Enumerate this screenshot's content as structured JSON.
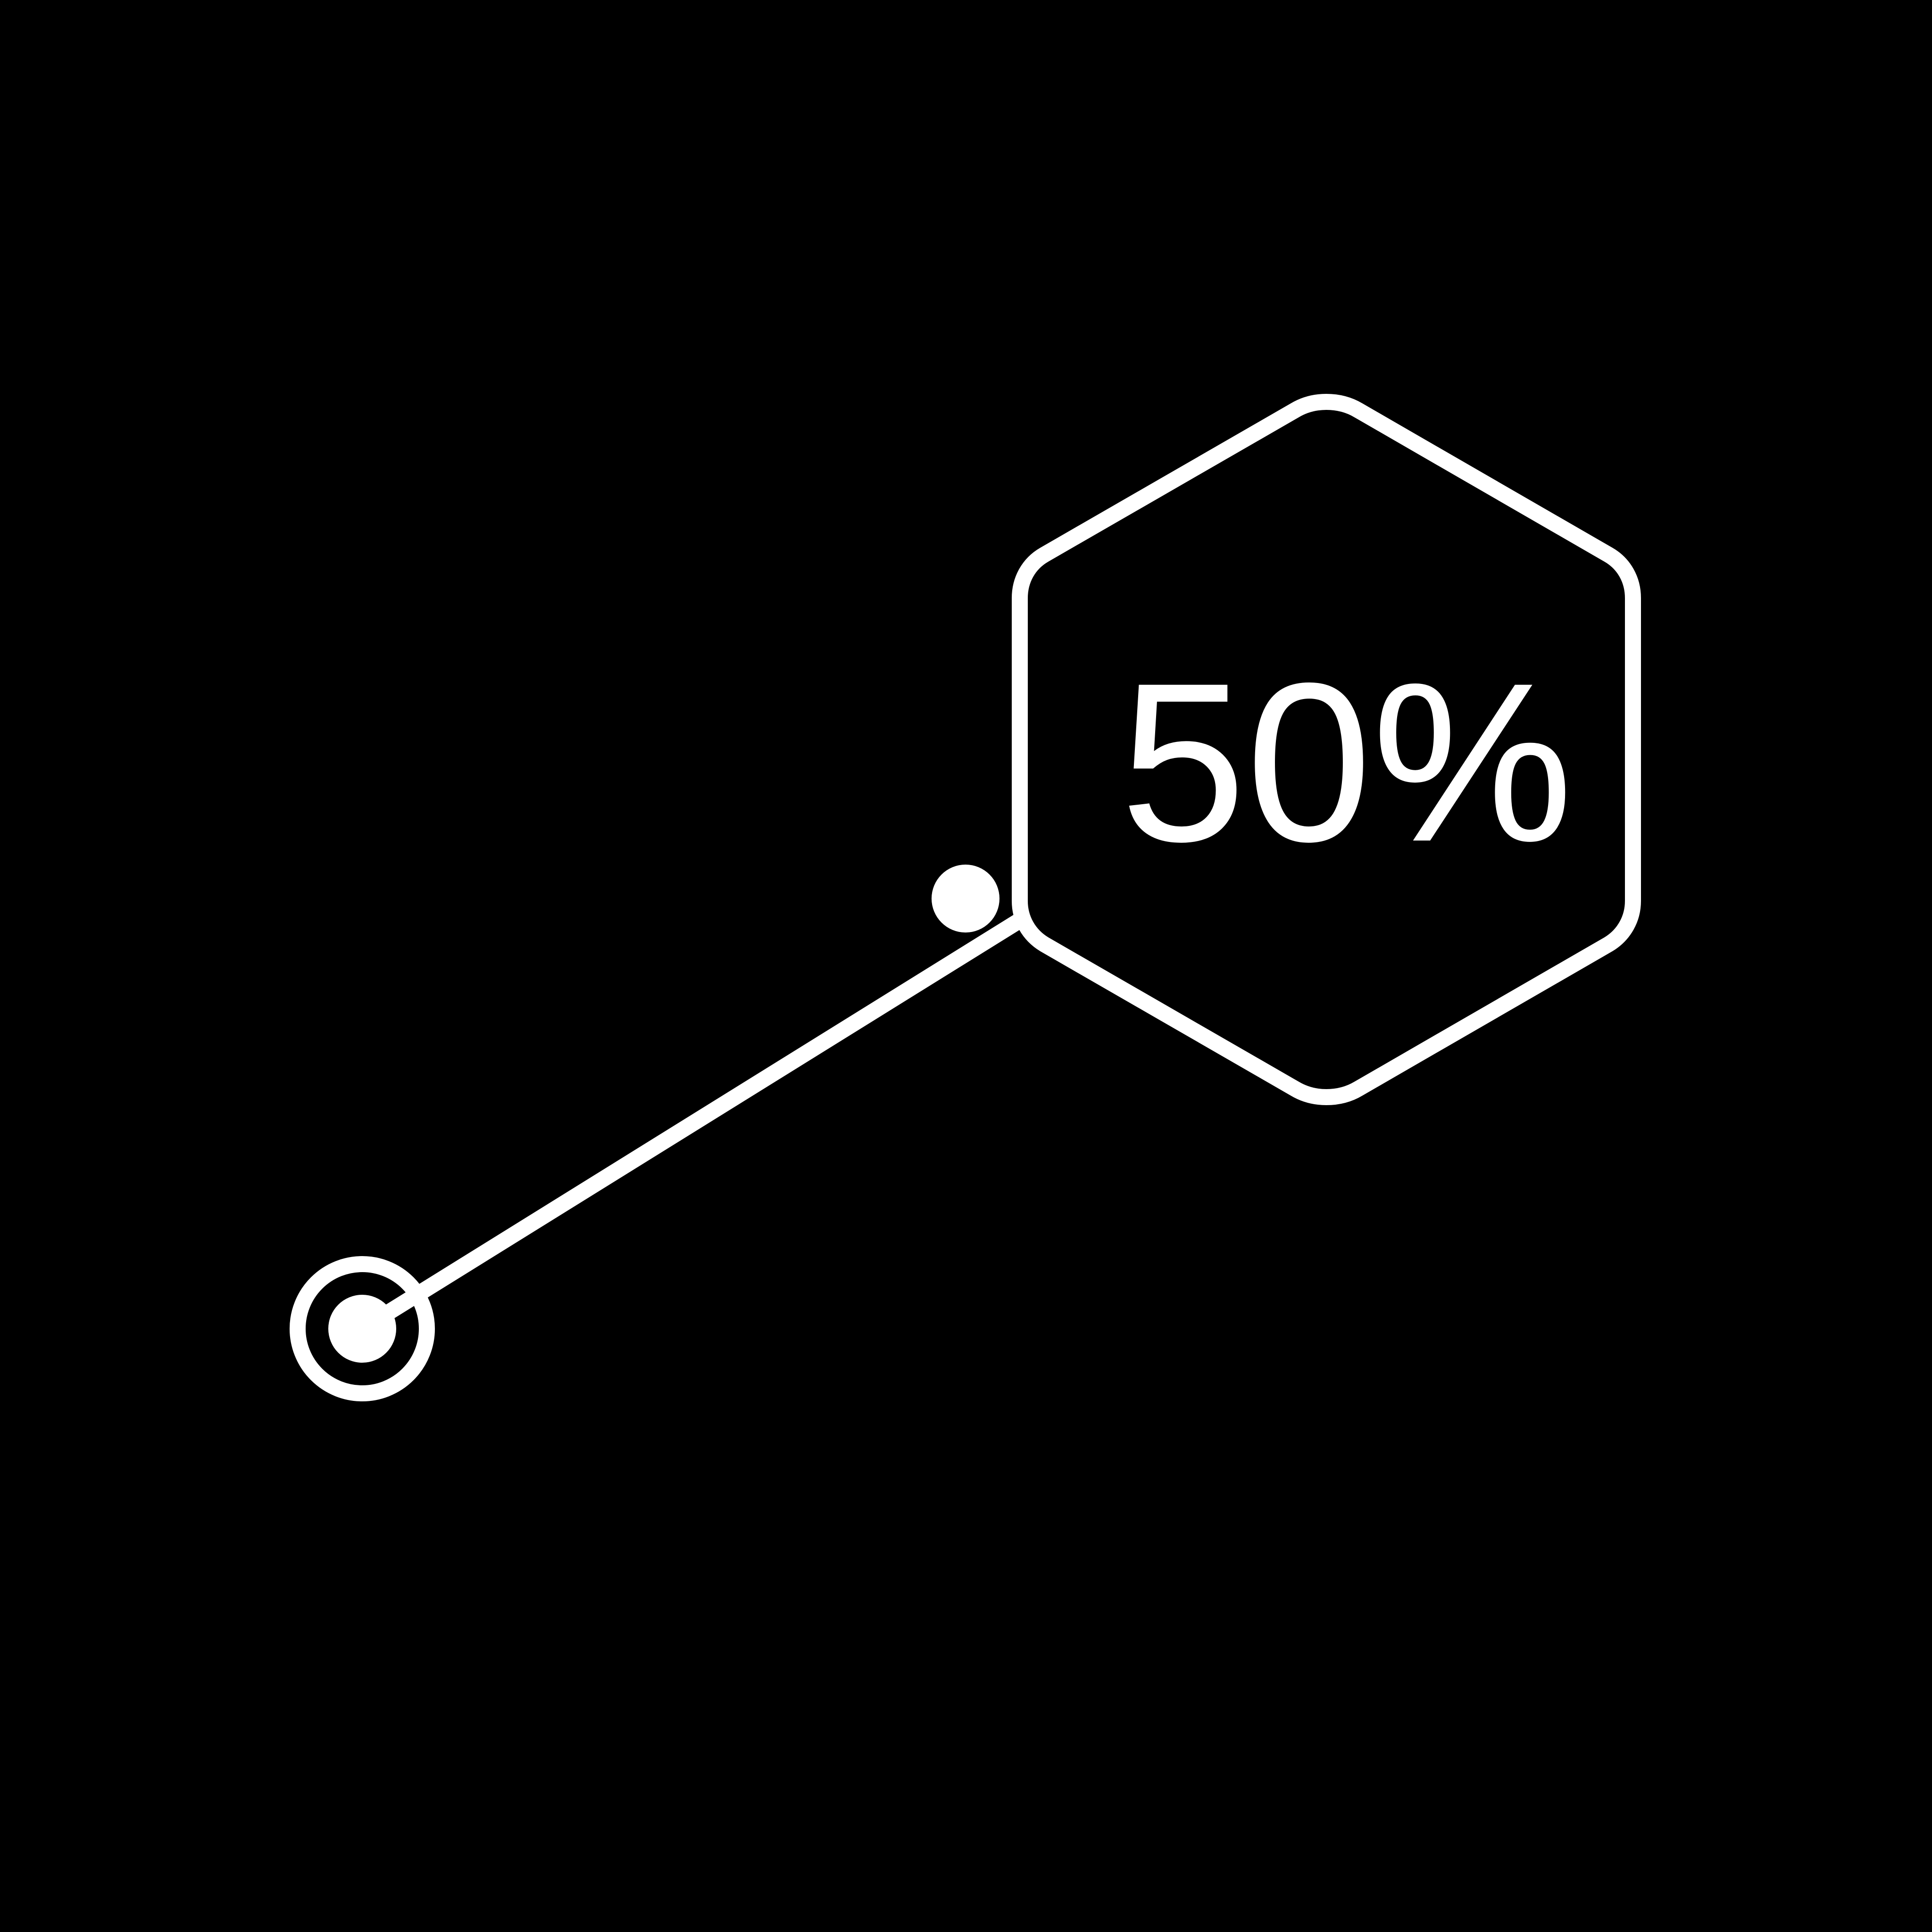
{
  "colors": {
    "background": "#000000",
    "foreground": "#FFFFFF"
  },
  "callout": {
    "value_text": "50%"
  }
}
